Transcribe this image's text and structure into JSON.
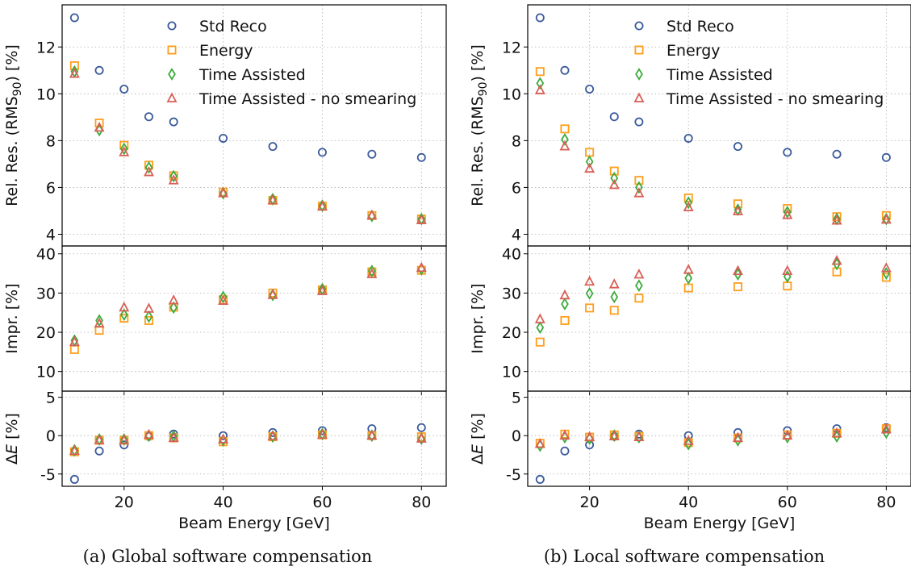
{
  "colors": {
    "Std Reco": "#3a5a9b",
    "Energy": "#ff9e1b",
    "Time Assisted": "#3caa3c",
    "Time Assisted - no smearing": "#d95f56"
  },
  "legend": [
    "Std Reco",
    "Energy",
    "Time Assisted",
    "Time Assisted - no smearing"
  ],
  "captions": {
    "left": "(a) Global software compensation",
    "right": "(b) Local software compensation"
  },
  "chart_data": [
    {
      "type": "scatter",
      "caption": "(a) Global software compensation",
      "xlabel": "Beam Energy [GeV]",
      "xlim": [
        7.5,
        85
      ],
      "xticks": [
        20,
        40,
        60,
        80
      ],
      "x": [
        10,
        15,
        20,
        25,
        30,
        40,
        50,
        60,
        70,
        80
      ],
      "legend": "upper right (top panel)",
      "grid": true,
      "panels": [
        {
          "ylabel": "Rel. Res. (RMS90) [%]",
          "ylim": [
            3.5,
            13.8
          ],
          "yticks": [
            4,
            6,
            8,
            10,
            12
          ],
          "series": [
            {
              "name": "Std Reco",
              "values": [
                13.25,
                11.0,
                10.2,
                9.02,
                8.8,
                8.1,
                7.75,
                7.5,
                7.42,
                7.28
              ]
            },
            {
              "name": "Energy",
              "values": [
                11.2,
                8.75,
                7.8,
                6.95,
                6.5,
                5.8,
                5.45,
                5.2,
                4.8,
                4.65
              ]
            },
            {
              "name": "Time Assisted",
              "values": [
                10.95,
                8.45,
                7.65,
                6.85,
                6.48,
                5.75,
                5.5,
                5.22,
                4.78,
                4.65
              ]
            },
            {
              "name": "Time Assisted - no smearing",
              "values": [
                10.85,
                8.55,
                7.5,
                6.65,
                6.3,
                5.75,
                5.45,
                5.18,
                4.8,
                4.6
              ]
            }
          ]
        },
        {
          "ylabel": "Impr. [%]",
          "ylim": [
            5,
            42
          ],
          "yticks": [
            10,
            20,
            30,
            40
          ],
          "series": [
            {
              "name": "Energy",
              "values": [
                15.6,
                20.5,
                23.6,
                23.0,
                26.4,
                28.3,
                30.0,
                30.8,
                35.4,
                35.8
              ]
            },
            {
              "name": "Time Assisted",
              "values": [
                17.9,
                23.0,
                24.5,
                24.0,
                26.3,
                29.0,
                29.5,
                31.0,
                35.6,
                36.1
              ]
            },
            {
              "name": "Time Assisted - no smearing",
              "values": [
                17.5,
                22.2,
                26.3,
                26.0,
                28.1,
                28.0,
                29.5,
                30.5,
                34.8,
                36.4
              ]
            }
          ]
        },
        {
          "ylabel": "ΔE [%]",
          "ylim": [
            -6.6,
            5.8
          ],
          "yticks": [
            -5,
            0,
            5
          ],
          "series": [
            {
              "name": "Std Reco",
              "values": [
                -5.7,
                -2.0,
                -1.2,
                -0.1,
                0.2,
                0.0,
                0.4,
                0.65,
                0.9,
                1.05
              ]
            },
            {
              "name": "Energy",
              "values": [
                -2.1,
                -0.6,
                -0.6,
                0.0,
                -0.3,
                -0.8,
                -0.15,
                0.1,
                0.0,
                -0.15
              ]
            },
            {
              "name": "Time Assisted",
              "values": [
                -1.9,
                -0.5,
                -0.5,
                0.0,
                -0.1,
                -0.6,
                -0.1,
                0.2,
                0.0,
                -0.4
              ]
            },
            {
              "name": "Time Assisted - no smearing",
              "values": [
                -2.0,
                -0.6,
                -0.6,
                0.1,
                -0.3,
                -0.5,
                -0.1,
                0.1,
                0.0,
                -0.4
              ]
            }
          ]
        }
      ]
    },
    {
      "type": "scatter",
      "caption": "(b) Local software compensation",
      "xlabel": "Beam Energy [GeV]",
      "xlim": [
        7.5,
        85
      ],
      "xticks": [
        20,
        40,
        60,
        80
      ],
      "x": [
        10,
        15,
        20,
        25,
        30,
        40,
        50,
        60,
        70,
        80
      ],
      "legend": "upper right (top panel)",
      "grid": true,
      "panels": [
        {
          "ylabel": "Rel. Res. (RMS90) [%]",
          "ylim": [
            3.5,
            13.8
          ],
          "yticks": [
            4,
            6,
            8,
            10,
            12
          ],
          "series": [
            {
              "name": "Std Reco",
              "values": [
                13.25,
                11.0,
                10.2,
                9.02,
                8.8,
                8.1,
                7.75,
                7.5,
                7.42,
                7.28
              ]
            },
            {
              "name": "Energy",
              "values": [
                10.95,
                8.5,
                7.5,
                6.7,
                6.3,
                5.55,
                5.3,
                5.1,
                4.75,
                4.8
              ]
            },
            {
              "name": "Time Assisted",
              "values": [
                10.45,
                8.05,
                7.1,
                6.4,
                6.0,
                5.35,
                5.05,
                4.95,
                4.65,
                4.65
              ]
            },
            {
              "name": "Time Assisted - no smearing",
              "values": [
                10.15,
                7.75,
                6.8,
                6.1,
                5.75,
                5.15,
                4.98,
                4.82,
                4.58,
                4.62
              ]
            }
          ]
        },
        {
          "ylabel": "Impr. [%]",
          "ylim": [
            5,
            42
          ],
          "yticks": [
            10,
            20,
            30,
            40
          ],
          "series": [
            {
              "name": "Energy",
              "values": [
                17.5,
                23.0,
                26.2,
                25.6,
                28.7,
                31.3,
                31.6,
                31.8,
                35.4,
                34.0
              ]
            },
            {
              "name": "Time Assisted",
              "values": [
                21.2,
                27.2,
                29.9,
                29.0,
                31.9,
                33.8,
                34.8,
                34.2,
                37.4,
                35.0
              ]
            },
            {
              "name": "Time Assisted - no smearing",
              "values": [
                23.3,
                29.4,
                32.9,
                32.2,
                34.7,
                35.9,
                35.6,
                35.6,
                38.2,
                36.3
              ]
            }
          ]
        },
        {
          "ylabel": "ΔE [%]",
          "ylim": [
            -6.6,
            5.8
          ],
          "yticks": [
            -5,
            0,
            5
          ],
          "series": [
            {
              "name": "Std Reco",
              "values": [
                -5.7,
                -2.0,
                -1.2,
                -0.1,
                0.2,
                0.0,
                0.4,
                0.65,
                0.9,
                1.05
              ]
            },
            {
              "name": "Energy",
              "values": [
                -1.0,
                0.2,
                -0.2,
                0.1,
                -0.1,
                -0.9,
                -0.3,
                0.1,
                0.3,
                0.9
              ]
            },
            {
              "name": "Time Assisted",
              "values": [
                -1.3,
                -0.2,
                -0.4,
                0.0,
                -0.2,
                -1.1,
                -0.6,
                -0.2,
                -0.1,
                0.4
              ]
            },
            {
              "name": "Time Assisted - no smearing",
              "values": [
                -1.1,
                0.0,
                -0.2,
                -0.1,
                -0.2,
                -0.7,
                -0.3,
                0.0,
                0.3,
                0.8
              ]
            }
          ]
        }
      ]
    }
  ]
}
